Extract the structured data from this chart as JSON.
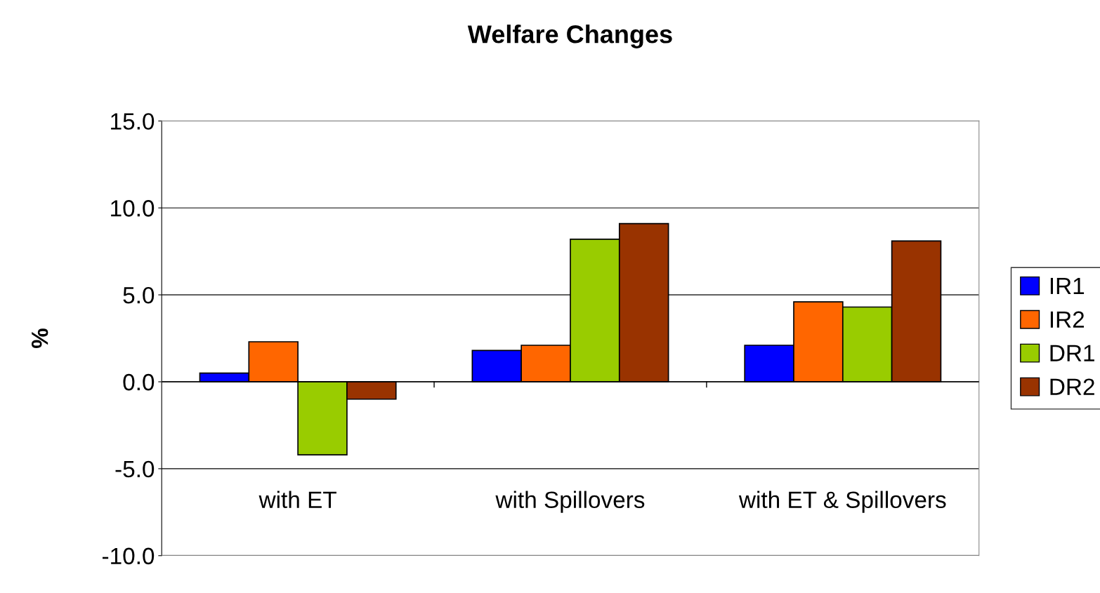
{
  "chart_data": {
    "type": "bar",
    "title": "Welfare Changes",
    "ylabel": "%",
    "categories": [
      "with ET",
      "with Spillovers",
      "with ET & Spillovers"
    ],
    "series": [
      {
        "name": "IR1",
        "color": "#0000ff",
        "values": [
          0.5,
          1.8,
          2.1
        ]
      },
      {
        "name": "IR2",
        "color": "#ff6600",
        "values": [
          2.3,
          2.1,
          4.6
        ]
      },
      {
        "name": "DR1",
        "color": "#99cc00",
        "values": [
          -4.2,
          8.2,
          4.3
        ]
      },
      {
        "name": "DR2",
        "color": "#993300",
        "values": [
          -1.0,
          9.1,
          8.1
        ]
      }
    ],
    "ylim": [
      -10,
      15
    ],
    "yticks": [
      {
        "value": -10,
        "label": "-10.0"
      },
      {
        "value": -5,
        "label": "-5.0"
      },
      {
        "value": 0,
        "label": "0.0"
      },
      {
        "value": 5,
        "label": "5.0"
      },
      {
        "value": 10,
        "label": "10.0"
      },
      {
        "value": 15,
        "label": "15.0"
      }
    ],
    "grid": "y",
    "legend": "right"
  }
}
